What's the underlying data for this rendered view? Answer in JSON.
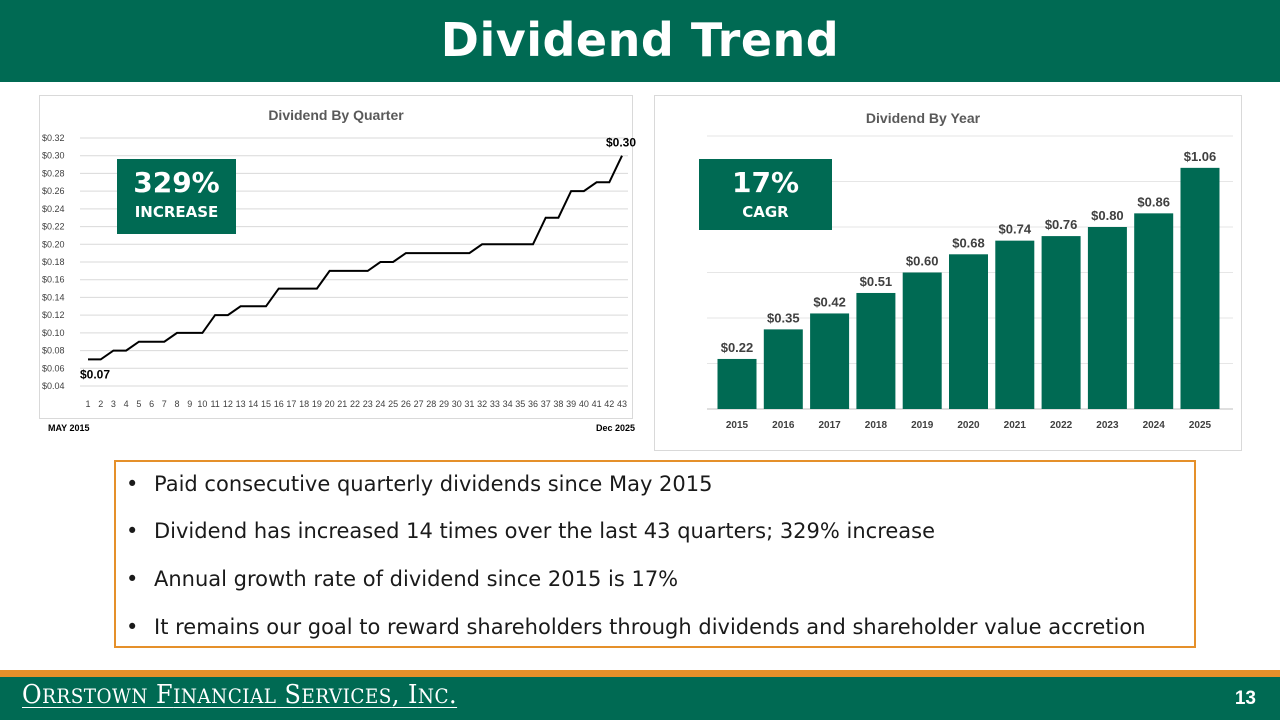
{
  "slide": {
    "title": "Dividend Trend",
    "page_number": "13",
    "company_name": "Orrstown Financial Services, Inc.",
    "colors": {
      "brand_green": "#006a53",
      "accent_orange": "#e5902a"
    }
  },
  "quarter_chart": {
    "callout_value": "329%",
    "callout_label": "INCREASE",
    "start_note": "MAY 2015",
    "end_note": "Dec 2025",
    "first_label": "$0.07",
    "last_label": "$0.30"
  },
  "year_chart": {
    "callout_value": "17%",
    "callout_label": "CAGR"
  },
  "bullets": [
    "Paid consecutive quarterly dividends since May 2015",
    "Dividend has increased 14 times over the last 43 quarters; 329% increase",
    "Annual growth rate of dividend since 2015 is 17%",
    "It remains our goal to reward shareholders through dividends and shareholder value accretion"
  ],
  "chart_data": [
    {
      "type": "line",
      "title": "Dividend By Quarter",
      "xlabel": "",
      "ylabel": "",
      "x": [
        1,
        2,
        3,
        4,
        5,
        6,
        7,
        8,
        9,
        10,
        11,
        12,
        13,
        14,
        15,
        16,
        17,
        18,
        19,
        20,
        21,
        22,
        23,
        24,
        25,
        26,
        27,
        28,
        29,
        30,
        31,
        32,
        33,
        34,
        35,
        36,
        37,
        38,
        39,
        40,
        41,
        42,
        43
      ],
      "values": [
        0.07,
        0.07,
        0.08,
        0.08,
        0.09,
        0.09,
        0.09,
        0.1,
        0.1,
        0.1,
        0.12,
        0.12,
        0.13,
        0.13,
        0.13,
        0.15,
        0.15,
        0.15,
        0.15,
        0.17,
        0.17,
        0.17,
        0.17,
        0.18,
        0.18,
        0.19,
        0.19,
        0.19,
        0.19,
        0.19,
        0.19,
        0.2,
        0.2,
        0.2,
        0.2,
        0.2,
        0.23,
        0.23,
        0.26,
        0.26,
        0.27,
        0.27,
        0.3
      ],
      "yticks": [
        "$0.04",
        "$0.06",
        "$0.08",
        "$0.10",
        "$0.12",
        "$0.14",
        "$0.16",
        "$0.18",
        "$0.20",
        "$0.22",
        "$0.24",
        "$0.26",
        "$0.28",
        "$0.30",
        "$0.32"
      ],
      "ylim": [
        0.04,
        0.32
      ],
      "grid": true,
      "line_color": "#000000",
      "data_labels": [
        {
          "index": 0,
          "text": "$0.07"
        },
        {
          "index": 42,
          "text": "$0.30"
        }
      ]
    },
    {
      "type": "bar",
      "title": "Dividend By Year",
      "xlabel": "",
      "ylabel": "",
      "categories": [
        "2015",
        "2016",
        "2017",
        "2018",
        "2019",
        "2020",
        "2021",
        "2022",
        "2023",
        "2024",
        "2025"
      ],
      "values": [
        0.22,
        0.35,
        0.42,
        0.51,
        0.6,
        0.68,
        0.74,
        0.76,
        0.8,
        0.86,
        1.06
      ],
      "labels": [
        "$0.22",
        "$0.35",
        "$0.42",
        "$0.51",
        "$0.60",
        "$0.68",
        "$0.74",
        "$0.76",
        "$0.80",
        "$0.86",
        "$1.06"
      ],
      "ylim": [
        0,
        1.2
      ],
      "grid": true,
      "bar_color": "#006a53"
    }
  ]
}
